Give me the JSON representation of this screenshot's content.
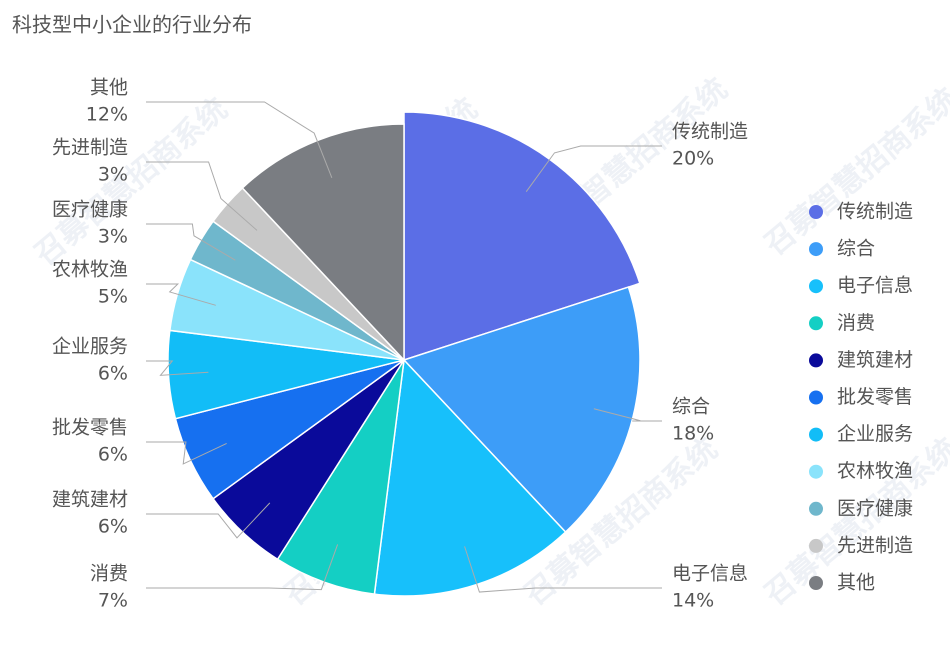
{
  "chart_data": {
    "type": "pie",
    "title": "科技型中小企业的行业分布",
    "watermark": "召募智慧招商系统",
    "categories": [
      "传统制造",
      "综合",
      "电子信息",
      "消费",
      "建筑建材",
      "批发零售",
      "企业服务",
      "农林牧渔",
      "医疗健康",
      "先进制造",
      "其他"
    ],
    "values": [
      20,
      18,
      14,
      7,
      6,
      6,
      6,
      5,
      3,
      3,
      12
    ],
    "value_labels": [
      "20%",
      "18%",
      "14%",
      "7%",
      "6%",
      "6%",
      "6%",
      "5%",
      "3%",
      "3%",
      "12%"
    ],
    "colors": [
      "#5b6ee6",
      "#3d9df8",
      "#17c0fb",
      "#14cfc4",
      "#0a0a9a",
      "#1670f0",
      "#12bdf7",
      "#8ae3fb",
      "#6fb7cc",
      "#c8c8c8",
      "#7a7d82"
    ],
    "legend": "right"
  }
}
